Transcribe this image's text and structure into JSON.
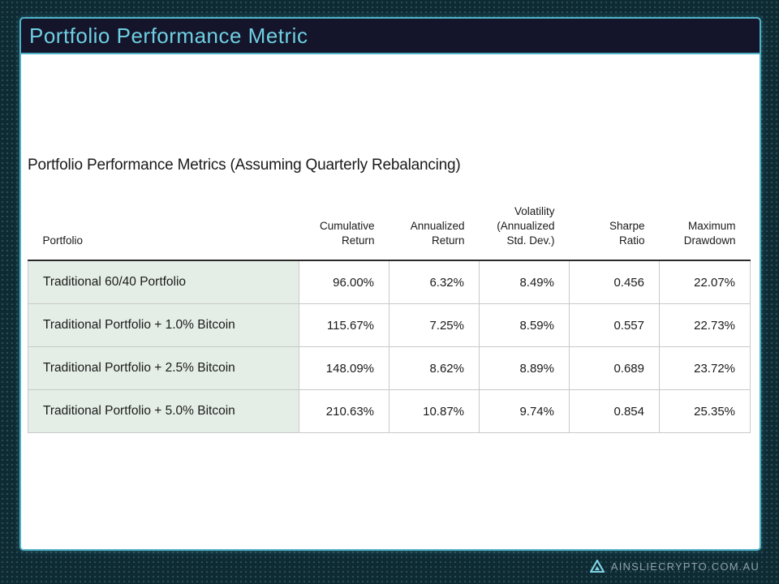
{
  "slide": {
    "title": "Portfolio Performance Metric"
  },
  "table": {
    "title": "Portfolio Performance Metrics (Assuming Quarterly Rebalancing)",
    "headers": [
      "Portfolio",
      "Cumulative\nReturn",
      "Annualized\nReturn",
      "Volatility\n(Annualized\nStd. Dev.)",
      "Sharpe\nRatio",
      "Maximum\nDrawdown"
    ],
    "rows": [
      [
        "Traditional 60/40 Portfolio",
        "96.00%",
        "6.32%",
        "8.49%",
        "0.456",
        "22.07%"
      ],
      [
        "Traditional Portfolio + 1.0% Bitcoin",
        "115.67%",
        "7.25%",
        "8.59%",
        "0.557",
        "22.73%"
      ],
      [
        "Traditional Portfolio + 2.5% Bitcoin",
        "148.09%",
        "8.62%",
        "8.89%",
        "0.689",
        "23.72%"
      ],
      [
        "Traditional Portfolio + 5.0% Bitcoin",
        "210.63%",
        "10.87%",
        "9.74%",
        "0.854",
        "25.35%"
      ]
    ]
  },
  "footer": {
    "logo_icon": "ainslie-triangle-logo-icon",
    "text": "AINSLIECRYPTO.COM.AU"
  },
  "colors": {
    "background": "#0e2a33",
    "accent": "#4fb3c7",
    "title_bar": "#14142a",
    "title_text": "#6fd0e2",
    "row_label_bg": "#e4eee6"
  }
}
